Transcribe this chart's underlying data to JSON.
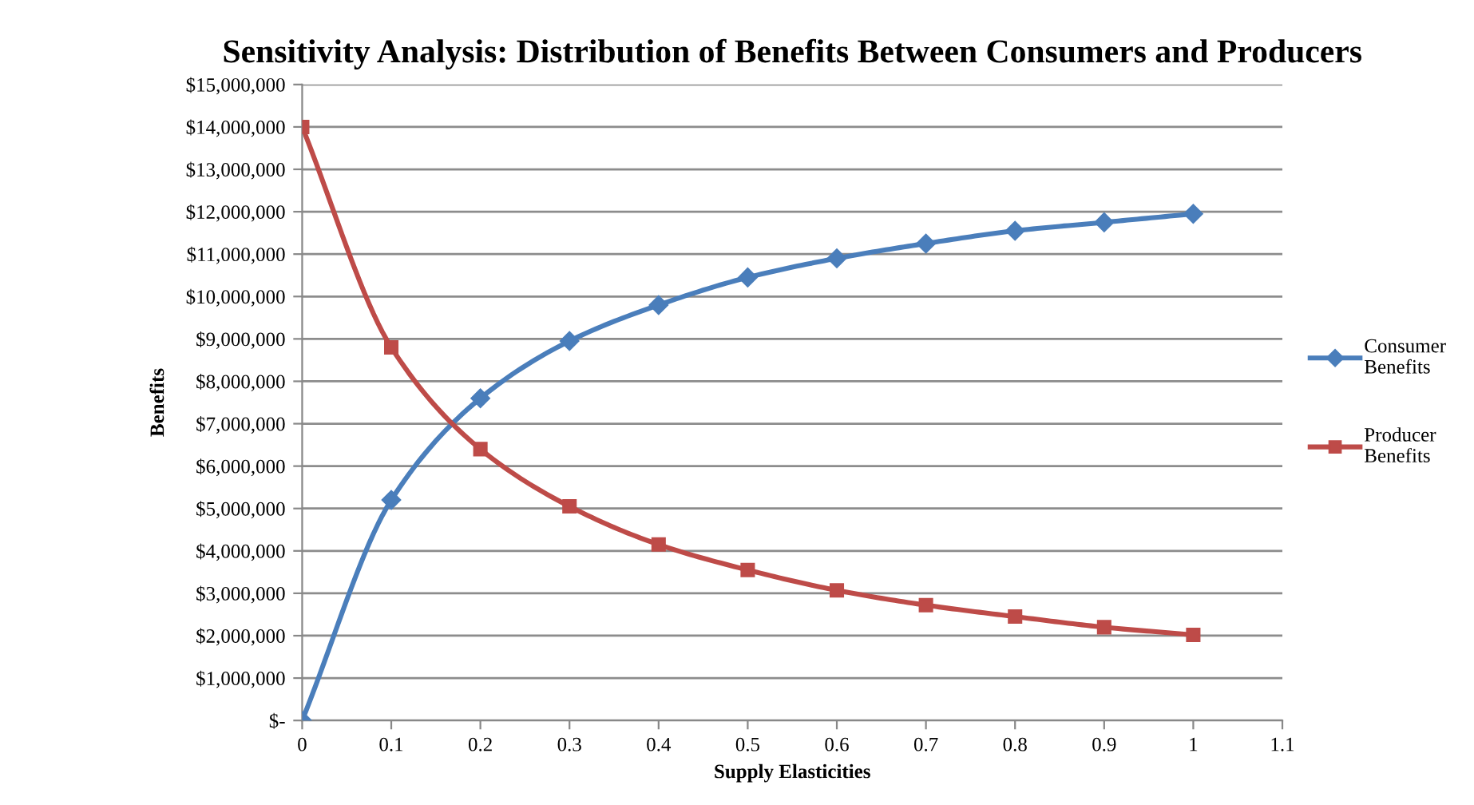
{
  "chart_data": {
    "type": "line",
    "title": "Sensitivity Analysis: Distribution of Benefits Between Consumers and Producers",
    "xlabel": "Supply Elasticities",
    "ylabel": "Benefits",
    "x": [
      0,
      0.1,
      0.2,
      0.3,
      0.4,
      0.5,
      0.6,
      0.7,
      0.8,
      0.9,
      1
    ],
    "series": [
      {
        "name": "Consumer Benefits",
        "color": "#4a7ebb",
        "marker": "diamond",
        "values": [
          0,
          5200000,
          7600000,
          8950000,
          9800000,
          10450000,
          10900000,
          11250000,
          11550000,
          11750000,
          11950000
        ]
      },
      {
        "name": "Producer Benefits",
        "color": "#be4b48",
        "marker": "square",
        "values": [
          14000000,
          8800000,
          6400000,
          5050000,
          4150000,
          3550000,
          3070000,
          2720000,
          2450000,
          2200000,
          2020000
        ]
      }
    ],
    "xlim": [
      0,
      1.1
    ],
    "xticks": [
      0,
      0.1,
      0.2,
      0.3,
      0.4,
      0.5,
      0.6,
      0.7,
      0.8,
      0.9,
      1,
      1.1
    ],
    "ylim": [
      0,
      15000000
    ],
    "yticks": [
      {
        "value": 0,
        "label": "$-"
      },
      {
        "value": 1000000,
        "label": "$1,000,000"
      },
      {
        "value": 2000000,
        "label": "$2,000,000"
      },
      {
        "value": 3000000,
        "label": "$3,000,000"
      },
      {
        "value": 4000000,
        "label": "$4,000,000"
      },
      {
        "value": 5000000,
        "label": "$5,000,000"
      },
      {
        "value": 6000000,
        "label": "$6,000,000"
      },
      {
        "value": 7000000,
        "label": "$7,000,000"
      },
      {
        "value": 8000000,
        "label": "$8,000,000"
      },
      {
        "value": 9000000,
        "label": "$9,000,000"
      },
      {
        "value": 10000000,
        "label": "$10,000,000"
      },
      {
        "value": 11000000,
        "label": "$11,000,000"
      },
      {
        "value": 12000000,
        "label": "$12,000,000"
      },
      {
        "value": 13000000,
        "label": "$13,000,000"
      },
      {
        "value": 14000000,
        "label": "$14,000,000"
      },
      {
        "value": 15000000,
        "label": "$15,000,000"
      }
    ],
    "grid": "y",
    "legend": "right"
  }
}
